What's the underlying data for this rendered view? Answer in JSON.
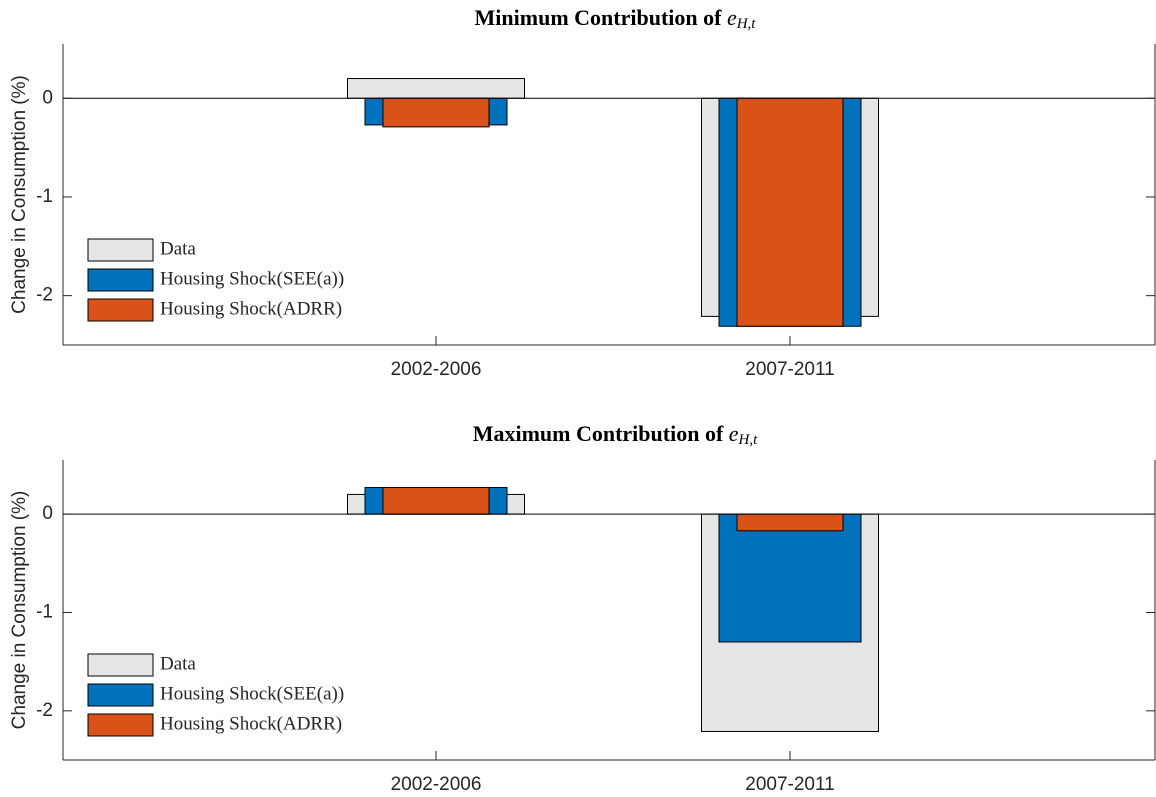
{
  "chart_data": [
    {
      "type": "bar",
      "title": "Minimum Contribution of ",
      "title_symbol": "e",
      "title_subscript": "H,t",
      "y_label": "Change in Consumption (%)",
      "categories": [
        "2002-2006",
        "2007-2011"
      ],
      "series": [
        {
          "name": "Data",
          "color": "#e6e6e6",
          "values": [
            0.2,
            -2.21
          ]
        },
        {
          "name": "Housing Shock(SEE(a))",
          "color": "#0072bd",
          "values": [
            -0.27,
            -2.31
          ]
        },
        {
          "name": "Housing Shock(ADRR)",
          "color": "#d95319",
          "values": [
            -0.29,
            -2.31
          ]
        }
      ],
      "ylim": [
        -2.5,
        0.55
      ],
      "yticks": [
        -2,
        -1,
        0
      ],
      "legend": "lower left"
    },
    {
      "type": "bar",
      "title": "Maximum Contribution of ",
      "title_symbol": "e",
      "title_subscript": "H,t",
      "y_label": "Change in Consumption (%)",
      "categories": [
        "2002-2006",
        "2007-2011"
      ],
      "series": [
        {
          "name": "Data",
          "color": "#e6e6e6",
          "values": [
            0.2,
            -2.21
          ]
        },
        {
          "name": "Housing Shock(SEE(a))",
          "color": "#0072bd",
          "values": [
            0.27,
            -1.3
          ]
        },
        {
          "name": "Housing Shock(ADRR)",
          "color": "#d95319",
          "values": [
            0.27,
            -0.17
          ]
        }
      ],
      "ylim": [
        -2.5,
        0.55
      ],
      "yticks": [
        -2,
        -1,
        0
      ],
      "legend": "lower left"
    }
  ]
}
